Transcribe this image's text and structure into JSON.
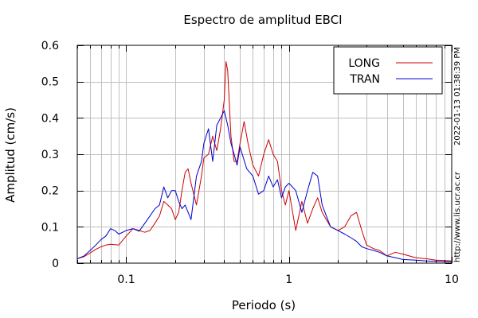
{
  "chart_data": {
    "type": "line",
    "title": "Espectro de amplitud EBCI",
    "xlabel": "Periodo (s)",
    "ylabel": "Amplitud (cm/s)",
    "xscale": "log",
    "xlim": [
      0.05,
      10
    ],
    "ylim": [
      0,
      0.6
    ],
    "x_ticks": [
      {
        "value": 0.1,
        "label": "0.1"
      },
      {
        "value": 1,
        "label": "1"
      },
      {
        "value": 10,
        "label": "10"
      }
    ],
    "y_ticks": [
      {
        "value": 0,
        "label": "0"
      },
      {
        "value": 0.1,
        "label": "0.1"
      },
      {
        "value": 0.2,
        "label": "0.2"
      },
      {
        "value": 0.3,
        "label": "0.3"
      },
      {
        "value": 0.4,
        "label": "0.4"
      },
      {
        "value": 0.5,
        "label": "0.5"
      },
      {
        "value": 0.6,
        "label": "0.6"
      }
    ],
    "grid": true,
    "legend_position": "top-right",
    "series": [
      {
        "name": "LONG",
        "color": "#cc0000",
        "x": [
          0.05,
          0.055,
          0.06,
          0.065,
          0.07,
          0.075,
          0.08,
          0.09,
          0.1,
          0.11,
          0.12,
          0.13,
          0.14,
          0.15,
          0.16,
          0.17,
          0.18,
          0.19,
          0.2,
          0.21,
          0.22,
          0.23,
          0.24,
          0.25,
          0.27,
          0.29,
          0.3,
          0.32,
          0.34,
          0.36,
          0.38,
          0.4,
          0.41,
          0.42,
          0.44,
          0.46,
          0.48,
          0.5,
          0.53,
          0.56,
          0.6,
          0.65,
          0.7,
          0.75,
          0.8,
          0.85,
          0.9,
          0.95,
          1.0,
          1.1,
          1.2,
          1.3,
          1.4,
          1.5,
          1.6,
          1.8,
          2.0,
          2.2,
          2.4,
          2.6,
          2.8,
          3.0,
          3.3,
          3.6,
          4.0,
          4.5,
          5.0,
          6.0,
          7.0,
          8.0,
          10.0
        ],
        "values": [
          0.012,
          0.018,
          0.028,
          0.038,
          0.045,
          0.05,
          0.052,
          0.05,
          0.075,
          0.095,
          0.09,
          0.085,
          0.09,
          0.11,
          0.13,
          0.17,
          0.16,
          0.15,
          0.12,
          0.14,
          0.2,
          0.25,
          0.26,
          0.22,
          0.16,
          0.24,
          0.29,
          0.3,
          0.35,
          0.31,
          0.37,
          0.45,
          0.555,
          0.53,
          0.35,
          0.28,
          0.28,
          0.33,
          0.39,
          0.33,
          0.27,
          0.24,
          0.3,
          0.34,
          0.3,
          0.28,
          0.2,
          0.16,
          0.2,
          0.09,
          0.17,
          0.11,
          0.15,
          0.18,
          0.14,
          0.1,
          0.09,
          0.1,
          0.13,
          0.14,
          0.09,
          0.05,
          0.04,
          0.035,
          0.02,
          0.03,
          0.025,
          0.015,
          0.012,
          0.008,
          0.006
        ]
      },
      {
        "name": "TRAN",
        "color": "#0000cc",
        "x": [
          0.05,
          0.055,
          0.06,
          0.065,
          0.07,
          0.075,
          0.08,
          0.085,
          0.09,
          0.1,
          0.11,
          0.12,
          0.13,
          0.14,
          0.15,
          0.16,
          0.17,
          0.18,
          0.19,
          0.2,
          0.21,
          0.22,
          0.23,
          0.24,
          0.25,
          0.27,
          0.29,
          0.3,
          0.32,
          0.34,
          0.36,
          0.38,
          0.4,
          0.42,
          0.44,
          0.46,
          0.48,
          0.5,
          0.55,
          0.6,
          0.65,
          0.7,
          0.75,
          0.8,
          0.85,
          0.9,
          0.95,
          1.0,
          1.1,
          1.2,
          1.3,
          1.4,
          1.5,
          1.6,
          1.8,
          2.0,
          2.2,
          2.4,
          2.6,
          2.8,
          3.0,
          3.3,
          3.6,
          4.0,
          4.5,
          5.0,
          6.0,
          7.0,
          8.0,
          10.0
        ],
        "values": [
          0.012,
          0.02,
          0.035,
          0.05,
          0.065,
          0.075,
          0.095,
          0.09,
          0.08,
          0.09,
          0.095,
          0.088,
          0.11,
          0.13,
          0.15,
          0.16,
          0.21,
          0.18,
          0.2,
          0.2,
          0.17,
          0.15,
          0.16,
          0.14,
          0.12,
          0.24,
          0.28,
          0.33,
          0.37,
          0.28,
          0.38,
          0.4,
          0.42,
          0.38,
          0.33,
          0.3,
          0.27,
          0.32,
          0.26,
          0.24,
          0.19,
          0.2,
          0.24,
          0.21,
          0.23,
          0.18,
          0.21,
          0.22,
          0.2,
          0.14,
          0.2,
          0.25,
          0.24,
          0.16,
          0.1,
          0.09,
          0.08,
          0.07,
          0.06,
          0.045,
          0.04,
          0.035,
          0.03,
          0.02,
          0.015,
          0.01,
          0.008,
          0.006,
          0.005,
          0.004
        ]
      }
    ]
  },
  "side_labels": {
    "timestamp": "2022-01-13 01:38:39 PM",
    "url": "http://www.lis.ucr.ac.cr"
  }
}
